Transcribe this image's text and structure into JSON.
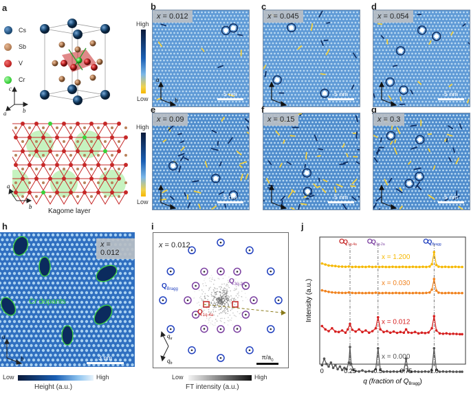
{
  "panel_labels": {
    "a": "a",
    "b": "b",
    "c": "c",
    "d": "d",
    "e": "e",
    "f": "f",
    "g": "g",
    "h": "h",
    "i": "i",
    "j": "j"
  },
  "legend_a": [
    {
      "label": "Cs",
      "color": "#1f4e79"
    },
    {
      "label": "Sb",
      "color": "#b8825a"
    },
    {
      "label": "V",
      "color": "#c62828"
    },
    {
      "label": "Cr",
      "color": "#3ad13a"
    }
  ],
  "axes_a": {
    "c": "c",
    "a": "a",
    "b": "b"
  },
  "kagome_caption": "Kagome layer",
  "kagome_axes": {
    "a": "a",
    "b": "b"
  },
  "colorbar_top": {
    "high": "High",
    "low": "Low"
  },
  "colorbar_mid": {
    "high": "High",
    "low": "Low"
  },
  "stm_panels": [
    {
      "id": "b",
      "x_prefix": "x",
      "x_value": " = 0.012",
      "scale": "5 nm",
      "axes": {
        "a": "a",
        "b": "b"
      }
    },
    {
      "id": "c",
      "x_prefix": "x",
      "x_value": " = 0.045",
      "scale": "5 nm"
    },
    {
      "id": "d",
      "x_prefix": "x",
      "x_value": " = 0.054",
      "scale": "5 nm"
    },
    {
      "id": "e",
      "x_prefix": "x",
      "x_value": " = 0.09",
      "scale": "5 nm"
    },
    {
      "id": "f",
      "x_prefix": "x",
      "x_value": " = 0.15",
      "scale": "5 nm"
    },
    {
      "id": "g",
      "x_prefix": "x",
      "x_value": " = 0.3",
      "scale": "5 nm"
    }
  ],
  "panel_h": {
    "x_prefix": "x",
    "x_value": " = 0.012",
    "annotation": "Cr dopants",
    "scale": "3 nm",
    "axes": {
      "a": "a",
      "b": "b"
    },
    "colorbar": {
      "low": "Low",
      "high": "High",
      "label": "Height (a.u.)"
    }
  },
  "panel_i": {
    "x_prefix": "x",
    "x_value": " = 0.012",
    "bragg": "Q",
    "bragg_sub": "Bragg",
    "q2a": "Q",
    "q2a_sub": "3q-2a",
    "q4a": "Q",
    "q4a_sub": "1q-4a",
    "qa": "q",
    "qa_sub": "a",
    "qb": "q",
    "qb_sub": "b",
    "scale": "π/a",
    "scale_sub": "0",
    "colorbar": {
      "low": "Low",
      "high": "High",
      "label": "FT intensity (a.u.)"
    }
  },
  "chart_data": {
    "type": "line",
    "xlabel": "q (fraction of Q",
    "xlabel_sub": "Bragg",
    "xlabel_end": ")",
    "ylabel": "Intensity (a.u.)",
    "xlim": [
      -0.02,
      1.28
    ],
    "xticks": [
      0,
      0.25,
      0.5,
      0.75,
      1
    ],
    "xtick_labels": [
      "0",
      "0.25",
      "0.5",
      "0.75",
      "1.0"
    ],
    "markers": [
      {
        "x": 0.25,
        "label": "Q",
        "sub": "1q-4a",
        "color": "#c62828"
      },
      {
        "x": 0.5,
        "label": "Q",
        "sub": "3q-2a",
        "color": "#7b3fa0"
      },
      {
        "x": 1.0,
        "label": "Q",
        "sub": "Bragg",
        "color": "#1f3fbf"
      }
    ],
    "series": [
      {
        "name": "x = 1.200",
        "color": "#f5b800",
        "x": [
          0.0,
          0.03,
          0.06,
          0.09,
          0.12,
          0.15,
          0.18,
          0.21,
          0.24,
          0.27,
          0.3,
          0.33,
          0.36,
          0.39,
          0.42,
          0.45,
          0.48,
          0.51,
          0.54,
          0.57,
          0.6,
          0.63,
          0.66,
          0.69,
          0.72,
          0.75,
          0.78,
          0.81,
          0.84,
          0.87,
          0.9,
          0.93,
          0.96,
          0.98,
          1.0,
          1.02,
          1.04,
          1.07,
          1.1,
          1.13,
          1.16,
          1.19,
          1.22,
          1.25
        ],
        "values": [
          0.25,
          0.18,
          0.12,
          0.1,
          0.08,
          0.05,
          0.04,
          0.03,
          0.05,
          0.02,
          0.03,
          0.02,
          0.03,
          0.02,
          0.04,
          0.02,
          0.03,
          0.02,
          0.03,
          0.02,
          0.02,
          0.03,
          0.02,
          0.02,
          0.03,
          0.02,
          0.02,
          0.03,
          0.02,
          0.02,
          0.03,
          0.02,
          0.05,
          0.2,
          1.0,
          0.15,
          0.04,
          0.02,
          0.03,
          0.02,
          0.02,
          0.03,
          0.02,
          0.02
        ]
      },
      {
        "name": "x = 0.030",
        "color": "#f0821e",
        "x": [
          0.0,
          0.03,
          0.06,
          0.09,
          0.12,
          0.15,
          0.18,
          0.21,
          0.24,
          0.27,
          0.3,
          0.33,
          0.36,
          0.39,
          0.42,
          0.45,
          0.48,
          0.51,
          0.54,
          0.57,
          0.6,
          0.63,
          0.66,
          0.69,
          0.72,
          0.75,
          0.78,
          0.81,
          0.84,
          0.87,
          0.9,
          0.93,
          0.96,
          0.98,
          1.0,
          1.02,
          1.04,
          1.07,
          1.1,
          1.13,
          1.16,
          1.19,
          1.22,
          1.25
        ],
        "values": [
          0.2,
          0.15,
          0.1,
          0.07,
          0.05,
          0.04,
          0.03,
          0.03,
          0.06,
          0.03,
          0.02,
          0.03,
          0.02,
          0.02,
          0.03,
          0.02,
          0.04,
          0.02,
          0.02,
          0.03,
          0.02,
          0.02,
          0.03,
          0.02,
          0.02,
          0.03,
          0.02,
          0.02,
          0.03,
          0.02,
          0.02,
          0.03,
          0.06,
          0.25,
          0.95,
          0.18,
          0.05,
          0.02,
          0.02,
          0.03,
          0.02,
          0.02,
          0.02,
          0.02
        ]
      },
      {
        "name": "x = 0.012",
        "color": "#d62020",
        "x": [
          0.0,
          0.03,
          0.06,
          0.09,
          0.12,
          0.15,
          0.18,
          0.21,
          0.23,
          0.25,
          0.27,
          0.3,
          0.33,
          0.36,
          0.39,
          0.42,
          0.45,
          0.48,
          0.5,
          0.52,
          0.55,
          0.58,
          0.61,
          0.64,
          0.67,
          0.7,
          0.73,
          0.75,
          0.77,
          0.8,
          0.83,
          0.86,
          0.89,
          0.92,
          0.95,
          0.98,
          1.0,
          1.02,
          1.05,
          1.08,
          1.11,
          1.14,
          1.17,
          1.2,
          1.23,
          1.25
        ],
        "values": [
          0.45,
          0.3,
          0.22,
          0.35,
          0.2,
          0.18,
          0.25,
          0.15,
          0.3,
          0.55,
          0.28,
          0.2,
          0.3,
          0.18,
          0.25,
          0.15,
          0.22,
          0.35,
          0.85,
          0.3,
          0.18,
          0.22,
          0.15,
          0.2,
          0.14,
          0.18,
          0.15,
          0.3,
          0.16,
          0.14,
          0.18,
          0.12,
          0.15,
          0.13,
          0.16,
          0.35,
          0.9,
          0.25,
          0.12,
          0.1,
          0.12,
          0.09,
          0.1,
          0.09,
          0.08,
          0.08
        ]
      },
      {
        "name": "x = 0.000",
        "color": "#555555",
        "x": [
          0.0,
          0.02,
          0.04,
          0.06,
          0.08,
          0.1,
          0.12,
          0.14,
          0.16,
          0.18,
          0.2,
          0.22,
          0.24,
          0.25,
          0.26,
          0.28,
          0.3,
          0.33,
          0.36,
          0.39,
          0.42,
          0.45,
          0.48,
          0.5,
          0.52,
          0.55,
          0.58,
          0.61,
          0.64,
          0.67,
          0.7,
          0.73,
          0.75,
          0.77,
          0.8,
          0.83,
          0.86,
          0.89,
          0.92,
          0.95,
          0.98,
          1.0,
          1.02,
          1.05,
          1.08,
          1.11,
          1.14,
          1.17,
          1.2,
          1.23,
          1.25
        ],
        "values": [
          0.3,
          0.55,
          0.35,
          0.25,
          0.4,
          0.2,
          0.3,
          0.15,
          0.25,
          0.12,
          0.2,
          0.15,
          0.4,
          1.0,
          0.35,
          0.12,
          0.08,
          0.06,
          0.1,
          0.05,
          0.07,
          0.05,
          0.15,
          0.95,
          0.12,
          0.05,
          0.06,
          0.05,
          0.06,
          0.05,
          0.07,
          0.1,
          0.55,
          0.08,
          0.05,
          0.06,
          0.05,
          0.05,
          0.06,
          0.05,
          0.1,
          0.95,
          0.12,
          0.05,
          0.06,
          0.05,
          0.06,
          0.05,
          0.05,
          0.05,
          0.05
        ]
      }
    ]
  }
}
